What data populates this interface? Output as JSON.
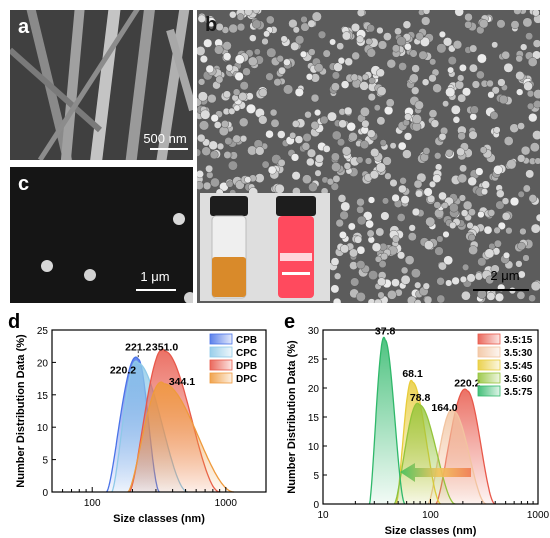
{
  "figure": {
    "panels": {
      "a": {
        "label": "a",
        "scale": "500 nm"
      },
      "b": {
        "label": "b",
        "scale": "2 μm"
      },
      "c": {
        "label": "c",
        "scale": "1 μm"
      }
    }
  },
  "chart_data": [
    {
      "panel": "d",
      "type": "area",
      "xscale": "log",
      "xlim": [
        50,
        2000
      ],
      "ylim": [
        0,
        25
      ],
      "xticks": [
        "100",
        "1000"
      ],
      "yticks": [
        "0",
        "5",
        "10",
        "15",
        "20",
        "25"
      ],
      "xlabel": "Size classes (nm)",
      "ylabel": "Number Distribution Data (%)",
      "legend_position": "top-right",
      "series": [
        {
          "name": "CPB",
          "color": "#4a73e8",
          "start": 128,
          "peak": 221.2,
          "peak_value": 20.5,
          "end": 320
        },
        {
          "name": "CPC",
          "color": "#8ec9e8",
          "start": 140,
          "peak": 220.2,
          "peak_value": 19.9,
          "end": 520
        },
        {
          "name": "DPB",
          "color": "#e8584a",
          "start": 190,
          "peak": 351.0,
          "peak_value": 21.7,
          "end": 900
        },
        {
          "name": "DPC",
          "color": "#ef9a3c",
          "start": 185,
          "peak": 344.1,
          "peak_value": 16.7,
          "end": 1150
        }
      ],
      "annotations": [
        {
          "text": "221.2",
          "x": 221.2,
          "y": 21.8
        },
        {
          "text": "220.2",
          "x": 170,
          "y": 18.3
        },
        {
          "text": "351.0",
          "x": 351.0,
          "y": 21.8
        },
        {
          "text": "344.1",
          "x": 470,
          "y": 16.5
        }
      ]
    },
    {
      "panel": "e",
      "type": "area",
      "xscale": "log",
      "xlim": [
        10,
        1000
      ],
      "ylim": [
        0,
        30
      ],
      "xticks": [
        "10",
        "100",
        "1000"
      ],
      "yticks": [
        "0",
        "5",
        "10",
        "15",
        "20",
        "25",
        "30"
      ],
      "xlabel": "Size classes (nm)",
      "ylabel": "Number Distribution Data (%)",
      "legend_position": "top-right",
      "series": [
        {
          "name": "3.5:15",
          "color": "#e8584a",
          "start": 112,
          "peak": 220.2,
          "peak_value": 19.5,
          "end": 400
        },
        {
          "name": "3.5:30",
          "color": "#f2c4a0",
          "start": 95,
          "peak": 164.0,
          "peak_value": 16.0,
          "end": 330
        },
        {
          "name": "3.5:45",
          "color": "#e8cc3a",
          "start": 48,
          "peak": 68.1,
          "peak_value": 21.0,
          "end": 125
        },
        {
          "name": "3.5:60",
          "color": "#94c43a",
          "start": 46,
          "peak": 78.8,
          "peak_value": 17.1,
          "end": 170
        },
        {
          "name": "3.5:75",
          "color": "#2fb86a",
          "start": 27,
          "peak": 37.8,
          "peak_value": 28.3,
          "end": 58
        }
      ],
      "annotations": [
        {
          "text": "37.8",
          "x": 37.8,
          "y": 29.2
        },
        {
          "text": "68.1",
          "x": 68.1,
          "y": 21.9
        },
        {
          "text": "78.8",
          "x": 80,
          "y": 17.8
        },
        {
          "text": "220.2",
          "x": 220.2,
          "y": 20.3
        },
        {
          "text": "164.0",
          "x": 135,
          "y": 16.0
        }
      ]
    }
  ]
}
